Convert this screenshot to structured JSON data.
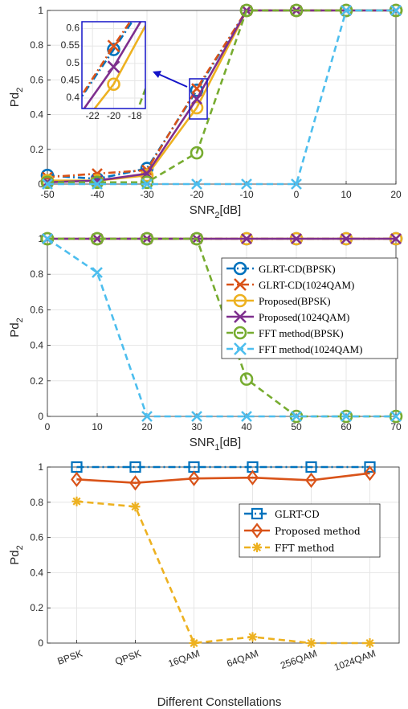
{
  "chart_data": [
    {
      "type": "line",
      "x": [
        -50,
        -40,
        -30,
        -20,
        -10,
        0,
        10,
        20
      ],
      "xlim": [
        -50,
        20
      ],
      "ylim": [
        0,
        1
      ],
      "xticks": [
        "-50",
        "-40",
        "-30",
        "-20",
        "-10",
        "0",
        "10",
        "20"
      ],
      "yticks": [
        "0",
        "0.2",
        "0.4",
        "0.6",
        "0.8",
        "1"
      ],
      "xlabel": "SNR",
      "xlabel_sub": "2",
      "xlabel_suffix": "[dB]",
      "ylabel": "Pd",
      "ylabel_sub": "2",
      "grid": true,
      "series": [
        {
          "name": "GLRT-CD(BPSK)",
          "color": "#0072BD",
          "marker": "o",
          "dash": "dashdot",
          "values": [
            0.05,
            0.03,
            0.09,
            0.54,
            1,
            1,
            1,
            1
          ]
        },
        {
          "name": "GLRT-CD(1024QAM)",
          "color": "#D95319",
          "marker": "x",
          "dash": "dashdot",
          "values": [
            0.04,
            0.06,
            0.08,
            0.55,
            1,
            1,
            1,
            1
          ]
        },
        {
          "name": "Proposed(BPSK)",
          "color": "#EDB120",
          "marker": "o",
          "dash": "solid",
          "values": [
            0.02,
            0.02,
            0.05,
            0.44,
            1,
            1,
            1,
            1
          ]
        },
        {
          "name": "Proposed(1024QAM)",
          "color": "#7E2F8E",
          "marker": "x",
          "dash": "solid",
          "values": [
            0.01,
            0.02,
            0.06,
            0.49,
            1,
            1,
            1,
            1
          ]
        },
        {
          "name": "FFT method(BPSK)",
          "color": "#77AC30",
          "marker": "o",
          "dash": "dashed",
          "values": [
            0.01,
            0.01,
            0.01,
            0.18,
            1,
            1,
            1,
            1
          ]
        },
        {
          "name": "FFT method(1024QAM)",
          "color": "#4DBEEE",
          "marker": "x",
          "dash": "dashed",
          "values": [
            0.0,
            0.0,
            0.0,
            0.0,
            0.0,
            0.0,
            1,
            1
          ]
        }
      ],
      "inset": {
        "xlim": [
          -23,
          -17
        ],
        "ylim": [
          0.37,
          0.62
        ],
        "xticks": [
          "-22",
          "-20",
          "-18"
        ],
        "yticks": [
          "0.4",
          "0.45",
          "0.5",
          "0.55",
          "0.6"
        ]
      }
    },
    {
      "type": "line",
      "x": [
        0,
        10,
        20,
        30,
        40,
        50,
        60,
        70
      ],
      "xlim": [
        0,
        70
      ],
      "ylim": [
        0,
        1
      ],
      "xticks": [
        "0",
        "10",
        "20",
        "30",
        "40",
        "50",
        "60",
        "70"
      ],
      "yticks": [
        "0",
        "0.2",
        "0.4",
        "0.6",
        "0.8",
        "1"
      ],
      "xlabel": "SNR",
      "xlabel_sub": "1",
      "xlabel_suffix": "[dB]",
      "ylabel": "Pd",
      "ylabel_sub": "2",
      "grid": true,
      "legend": "upper-right",
      "series": [
        {
          "name": "GLRT-CD(BPSK)",
          "color": "#0072BD",
          "marker": "o",
          "dash": "dashdot",
          "values": [
            1,
            1,
            1,
            1,
            1,
            1,
            1,
            1
          ]
        },
        {
          "name": "GLRT-CD(1024QAM)",
          "color": "#D95319",
          "marker": "x",
          "dash": "dashdot",
          "values": [
            1,
            1,
            1,
            1,
            1,
            1,
            1,
            1
          ]
        },
        {
          "name": "Proposed(BPSK)",
          "color": "#EDB120",
          "marker": "o",
          "dash": "solid",
          "values": [
            1,
            1,
            1,
            1,
            1,
            1,
            1,
            1
          ]
        },
        {
          "name": "Proposed(1024QAM)",
          "color": "#7E2F8E",
          "marker": "x",
          "dash": "solid",
          "values": [
            1,
            1,
            1,
            1,
            1,
            1,
            1,
            1
          ]
        },
        {
          "name": "FFT method(BPSK)",
          "color": "#77AC30",
          "marker": "o",
          "dash": "dashed",
          "values": [
            1,
            1,
            1,
            1,
            0.21,
            0.0,
            0.0,
            0.0
          ]
        },
        {
          "name": "FFT method(1024QAM)",
          "color": "#4DBEEE",
          "marker": "x",
          "dash": "dashed",
          "values": [
            1,
            0.81,
            0.0,
            0.0,
            0.0,
            0.0,
            0.0,
            0.0
          ]
        }
      ]
    },
    {
      "type": "line",
      "categories": [
        "BPSK",
        "QPSK",
        "16QAM",
        "64QAM",
        "256QAM",
        "1024QAM"
      ],
      "ylim": [
        0,
        1
      ],
      "yticks": [
        "0",
        "0.2",
        "0.4",
        "0.6",
        "0.8",
        "1"
      ],
      "xlabel": "Different Constellations",
      "ylabel": "Pd",
      "ylabel_sub": "2",
      "grid": true,
      "legend": "upper-right",
      "series": [
        {
          "name": "GLRT-CD",
          "color": "#0072BD",
          "marker": "s",
          "dash": "dashdot",
          "values": [
            1,
            1,
            1,
            1,
            1,
            1
          ]
        },
        {
          "name": "Proposed method",
          "color": "#D95319",
          "marker": "d",
          "dash": "solid",
          "values": [
            0.93,
            0.91,
            0.935,
            0.94,
            0.925,
            0.965
          ]
        },
        {
          "name": "FFT method",
          "color": "#EDB120",
          "marker": "*",
          "dash": "dashed",
          "values": [
            0.805,
            0.775,
            0.0,
            0.035,
            0.0,
            0.0
          ]
        }
      ]
    }
  ]
}
